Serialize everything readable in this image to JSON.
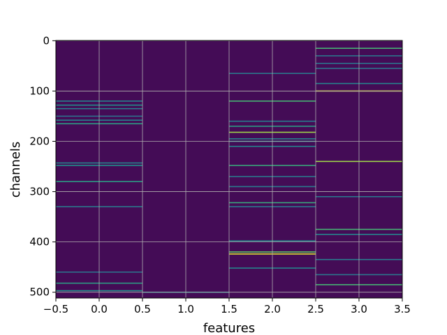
{
  "chart_data": {
    "type": "heatmap",
    "title": "",
    "xlabel": "features",
    "ylabel": "channels",
    "xlim": [
      -0.5,
      3.5
    ],
    "ylim": [
      511.5,
      -0.5
    ],
    "y_inverted": true,
    "grid": true,
    "colormap": "viridis",
    "background_color": "#440c56",
    "x_ticks": [
      -0.5,
      0.0,
      0.5,
      1.0,
      1.5,
      2.0,
      2.5,
      3.0,
      3.5
    ],
    "x_tick_labels": [
      "−0.5",
      "0.0",
      "0.5",
      "1.0",
      "1.5",
      "2.0",
      "2.5",
      "3.0",
      "3.5"
    ],
    "y_ticks": [
      0,
      100,
      200,
      300,
      400,
      500
    ],
    "y_tick_labels": [
      "0",
      "100",
      "200",
      "300",
      "400",
      "500"
    ],
    "columns": [
      {
        "feature": 0,
        "highlights": [
          {
            "channel": 120,
            "value": 0.45
          },
          {
            "channel": 128,
            "value": 0.5
          },
          {
            "channel": 135,
            "value": 0.42
          },
          {
            "channel": 150,
            "value": 0.38
          },
          {
            "channel": 158,
            "value": 0.45
          },
          {
            "channel": 165,
            "value": 0.55
          },
          {
            "channel": 243,
            "value": 0.45
          },
          {
            "channel": 248,
            "value": 0.5
          },
          {
            "channel": 280,
            "value": 0.55
          },
          {
            "channel": 330,
            "value": 0.4
          },
          {
            "channel": 460,
            "value": 0.38
          },
          {
            "channel": 482,
            "value": 0.55
          },
          {
            "channel": 497,
            "value": 0.5
          }
        ]
      },
      {
        "feature": 1,
        "highlights": [
          {
            "channel": 500,
            "value": 0.45
          }
        ]
      },
      {
        "feature": 2,
        "highlights": [
          {
            "channel": 65,
            "value": 0.4
          },
          {
            "channel": 120,
            "value": 0.65
          },
          {
            "channel": 160,
            "value": 0.42
          },
          {
            "channel": 170,
            "value": 0.55
          },
          {
            "channel": 182,
            "value": 0.85
          },
          {
            "channel": 195,
            "value": 0.45
          },
          {
            "channel": 200,
            "value": 0.5
          },
          {
            "channel": 210,
            "value": 0.45
          },
          {
            "channel": 248,
            "value": 0.6
          },
          {
            "channel": 270,
            "value": 0.4
          },
          {
            "channel": 290,
            "value": 0.4
          },
          {
            "channel": 322,
            "value": 0.6
          },
          {
            "channel": 330,
            "value": 0.4
          },
          {
            "channel": 398,
            "value": 0.45
          },
          {
            "channel": 420,
            "value": 0.75
          },
          {
            "channel": 424,
            "value": 0.95
          },
          {
            "channel": 452,
            "value": 0.45
          }
        ]
      },
      {
        "feature": 3,
        "highlights": [
          {
            "channel": 15,
            "value": 0.65
          },
          {
            "channel": 30,
            "value": 0.4
          },
          {
            "channel": 45,
            "value": 0.38
          },
          {
            "channel": 55,
            "value": 0.38
          },
          {
            "channel": 85,
            "value": 0.45
          },
          {
            "channel": 100,
            "value": 0.95
          },
          {
            "channel": 240,
            "value": 0.85
          },
          {
            "channel": 310,
            "value": 0.4
          },
          {
            "channel": 375,
            "value": 0.65
          },
          {
            "channel": 385,
            "value": 0.45
          },
          {
            "channel": 435,
            "value": 0.4
          },
          {
            "channel": 465,
            "value": 0.4
          },
          {
            "channel": 485,
            "value": 0.65
          }
        ]
      }
    ]
  }
}
